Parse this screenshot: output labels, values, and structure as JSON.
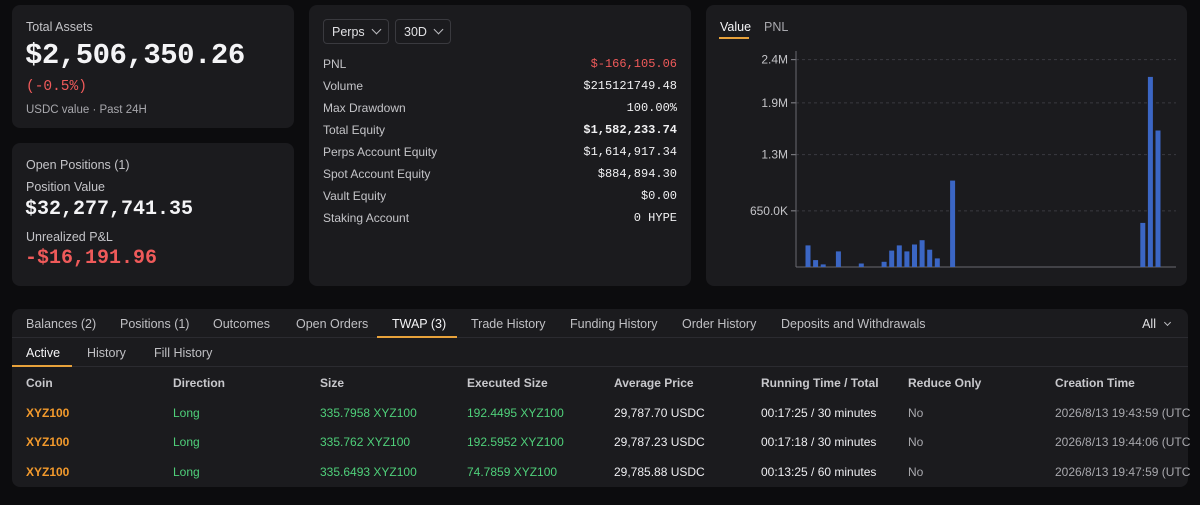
{
  "summary": {
    "total_assets_label": "Total Assets",
    "total_assets_value": "$2,506,350.26",
    "total_change": "(-0.5%)",
    "total_sub": "USDC value · Past 24H"
  },
  "positions": {
    "title": "Open Positions (1)",
    "position_value_label": "Position Value",
    "position_value": "$32,277,741.35",
    "unrealized_label": "Unrealized P&L",
    "unrealized_value": "-$16,191.96"
  },
  "stats": {
    "market_select": "Perps",
    "period_select": "30D",
    "rows": [
      {
        "label": "PNL",
        "value": "$-166,105.06"
      },
      {
        "label": "Volume",
        "value": "$215121749.48"
      },
      {
        "label": "Max Drawdown",
        "value": "100.00%"
      },
      {
        "label": "Total Equity",
        "value": "$1,582,233.74"
      },
      {
        "label": "Perps Account Equity",
        "value": "$1,614,917.34"
      },
      {
        "label": "Spot Account Equity",
        "value": "$884,894.30"
      },
      {
        "label": "Vault Equity",
        "value": "$0.00"
      },
      {
        "label": "Staking Account",
        "value": "0 HYPE"
      }
    ]
  },
  "chart_tabs": [
    "Value",
    "PNL"
  ],
  "chart_data": {
    "type": "bar",
    "yticks": [
      "2.4M",
      "1.9M",
      "1.3M",
      "650.0K"
    ],
    "ytick_values": [
      2400000,
      1900000,
      1300000,
      650000
    ],
    "ylim": [
      0,
      2500000
    ],
    "grid": true,
    "values": [
      250000,
      80000,
      30000,
      0,
      180000,
      0,
      0,
      40000,
      0,
      0,
      60000,
      190000,
      250000,
      180000,
      260000,
      310000,
      200000,
      100000,
      0,
      1000000,
      0,
      0,
      0,
      0,
      0,
      0,
      0,
      0,
      0,
      0,
      0,
      0,
      0,
      0,
      0,
      0,
      0,
      0,
      0,
      0,
      0,
      0,
      0,
      0,
      510000,
      2200000,
      1580000
    ],
    "color": "#3b66c4"
  },
  "tabs": [
    {
      "label": "Balances (2)"
    },
    {
      "label": "Positions (1)"
    },
    {
      "label": "Outcomes"
    },
    {
      "label": "Open Orders"
    },
    {
      "label": "TWAP (3)"
    },
    {
      "label": "Trade History"
    },
    {
      "label": "Funding History"
    },
    {
      "label": "Order History"
    },
    {
      "label": "Deposits and Withdrawals"
    }
  ],
  "filter_select": "All",
  "subtabs": [
    "Active",
    "History",
    "Fill History"
  ],
  "table": {
    "columns": [
      "Coin",
      "Direction",
      "Size",
      "Executed Size",
      "Average Price",
      "Running Time / Total",
      "Reduce Only",
      "Creation Time"
    ],
    "rows": [
      [
        "XYZ100",
        "Long",
        "335.7958 XYZ100",
        "192.4495 XYZ100",
        "29,787.70 USDC",
        "00:17:25 / 30 minutes",
        "No",
        "2026/8/13 19:43:59 (UTC"
      ],
      [
        "XYZ100",
        "Long",
        "335.762 XYZ100",
        "192.5952 XYZ100",
        "29,787.23 USDC",
        "00:17:18 / 30 minutes",
        "No",
        "2026/8/13 19:44:06 (UTC"
      ],
      [
        "XYZ100",
        "Long",
        "335.6493 XYZ100",
        "74.7859 XYZ100",
        "29,785.88 USDC",
        "00:13:25 / 60 minutes",
        "No",
        "2026/8/13 19:47:59 (UTC"
      ]
    ]
  },
  "colors": {
    "accent": "#e8a23b",
    "negative": "#ef5a5a",
    "positive": "#4fd07a",
    "coin": "#f39a2c"
  }
}
